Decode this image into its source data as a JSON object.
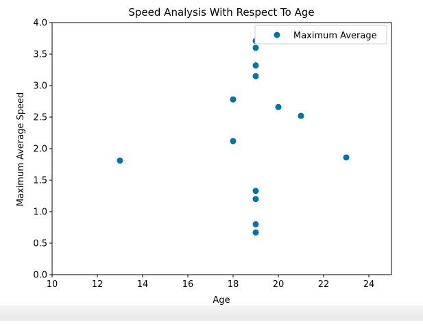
{
  "chart_data": {
    "type": "scatter",
    "title": "Speed Analysis With Respect To Age",
    "xlabel": "Age",
    "ylabel": "Maximum Average Speed",
    "xlim": [
      10,
      25
    ],
    "ylim": [
      0.0,
      4.0
    ],
    "xticks": [
      10,
      12,
      14,
      16,
      18,
      20,
      22,
      24
    ],
    "xtick_labels": [
      "10",
      "12",
      "14",
      "16",
      "18",
      "20",
      "22",
      "24"
    ],
    "yticks": [
      0.0,
      0.5,
      1.0,
      1.5,
      2.0,
      2.5,
      3.0,
      3.5,
      4.0
    ],
    "ytick_labels": [
      "0.0",
      "0.5",
      "1.0",
      "1.5",
      "2.0",
      "2.5",
      "3.0",
      "3.5",
      "4.0"
    ],
    "grid": false,
    "legend_position": "top-right",
    "series": [
      {
        "name": "Maximum Average",
        "color": "#0072b2",
        "marker": "circle",
        "x": [
          13,
          18,
          18,
          19,
          19,
          19,
          19,
          19,
          19,
          19,
          19,
          20,
          21,
          23
        ],
        "y": [
          1.81,
          2.78,
          2.12,
          3.71,
          3.6,
          3.32,
          3.15,
          1.33,
          1.2,
          0.8,
          0.67,
          2.66,
          2.52,
          1.86
        ]
      }
    ]
  }
}
